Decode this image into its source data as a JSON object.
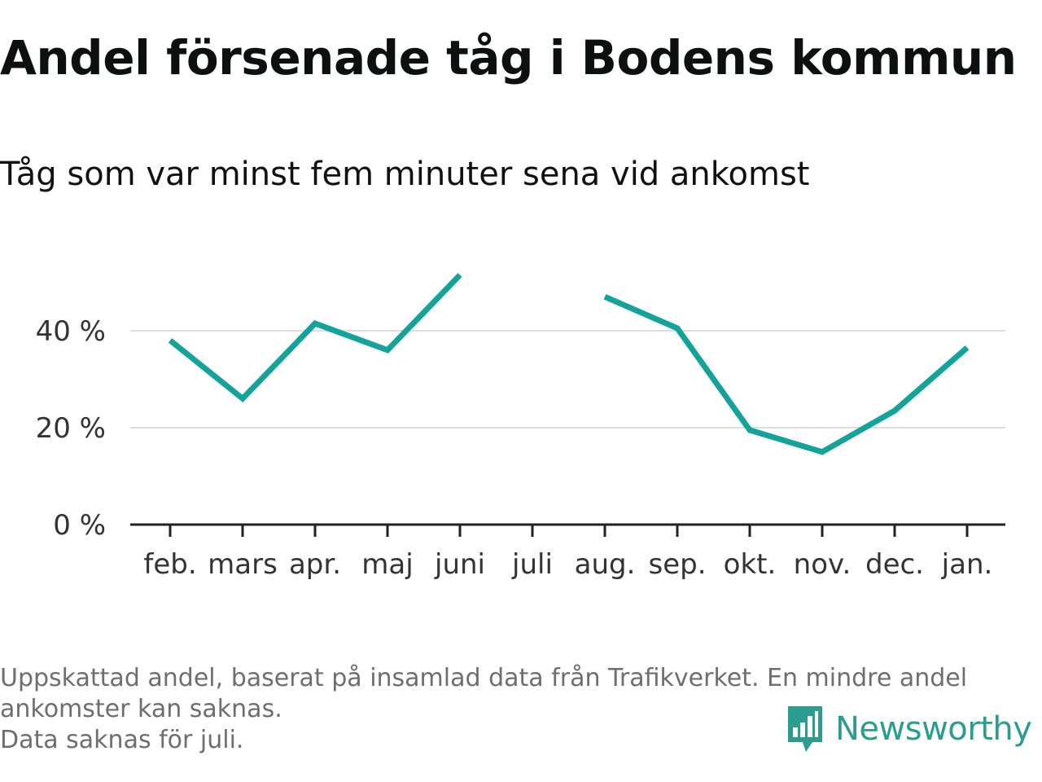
{
  "title": "Andel försenade tåg i Bodens kommun",
  "subtitle": "Tåg som var minst fem minuter sena vid ankomst",
  "footnote": {
    "line1": "Uppskattad andel, baserat på insamlad data från Trafikverket. En mindre andel",
    "line2": "ankomster kan saknas.",
    "line3": "Data saknas för juli."
  },
  "brand": {
    "name": "Newsworthy",
    "icon": "newsworthy-logo-icon",
    "color": "#2a9d8f"
  },
  "colors": {
    "line": "#14a39a",
    "grid": "#dddddd",
    "axis": "#222222",
    "text": "#333333"
  },
  "chart_data": {
    "type": "line",
    "title": "Andel försenade tåg i Bodens kommun",
    "subtitle": "Tåg som var minst fem minuter sena vid ankomst",
    "categories": [
      "feb.",
      "mars",
      "apr.",
      "maj",
      "juni",
      "juli",
      "aug.",
      "sep.",
      "okt.",
      "nov.",
      "dec.",
      "jan."
    ],
    "values": [
      38,
      26,
      41.5,
      36,
      51.5,
      null,
      47,
      40.5,
      19.5,
      15,
      23.5,
      36.5
    ],
    "yticks": [
      0,
      20,
      40
    ],
    "ytick_labels": [
      "0 %",
      "20 %",
      "40 %"
    ],
    "ylim": [
      0,
      55
    ],
    "grid": true,
    "legend": "none",
    "xlabel": "",
    "ylabel": ""
  }
}
